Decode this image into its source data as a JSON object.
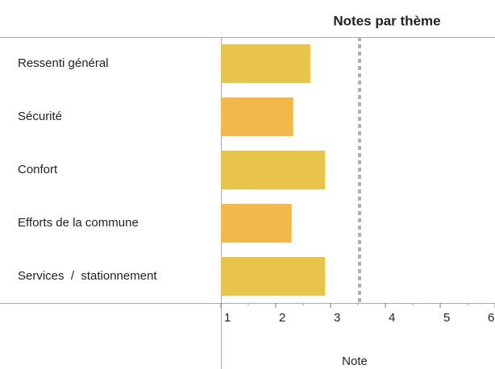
{
  "chart_data": {
    "type": "barh",
    "title": "Notes par thème",
    "xlabel": "Note",
    "categories": [
      "Ressenti général",
      "Sécurité",
      "Confort",
      "Efforts de la commune",
      "Services  /  stationnement"
    ],
    "values": [
      2.63,
      2.32,
      2.9,
      2.29,
      2.9
    ],
    "colors": [
      "#e8c54a",
      "#f2b94a",
      "#e8c54a",
      "#f2b94a",
      "#e8c54a"
    ],
    "xlim": [
      1,
      6
    ],
    "xticks": [
      1,
      2,
      3,
      4,
      5,
      6
    ],
    "minor_xticks": [
      1.5,
      2.5,
      3.5,
      4.5,
      5.5
    ],
    "reference_line": 3.53,
    "reference_color": "#b0b0b0"
  }
}
